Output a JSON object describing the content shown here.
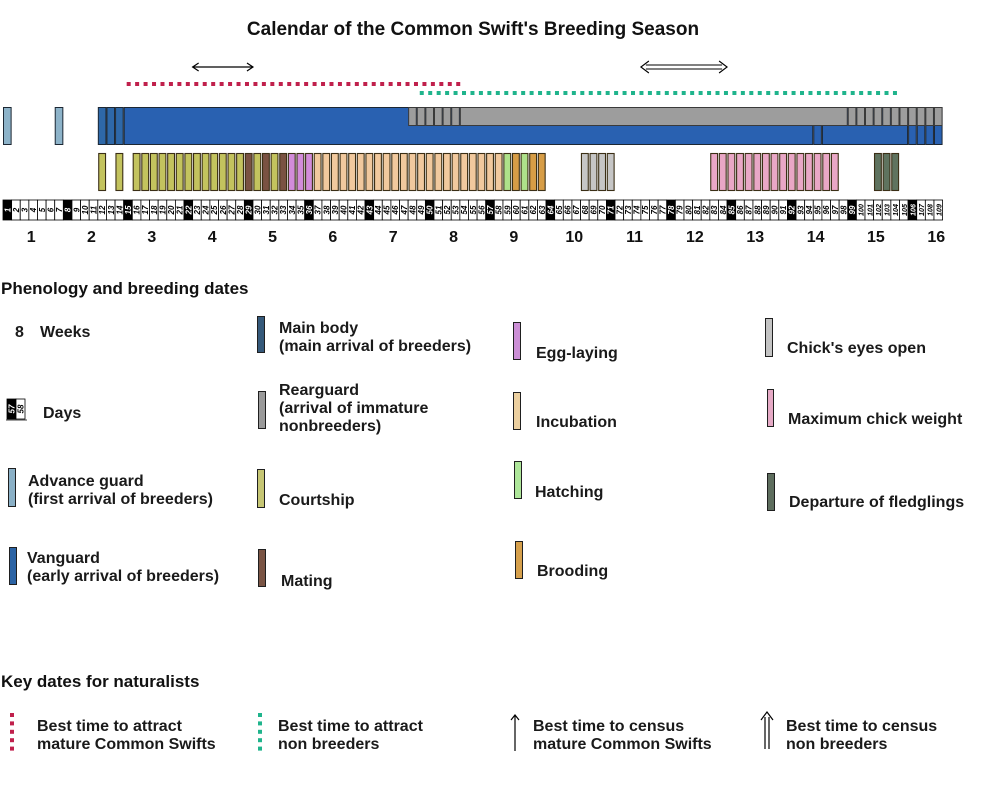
{
  "chart_data": {
    "type": "bar",
    "title": "Calendar of the Common Swift's Breeding Season",
    "xlabel": "",
    "ylabel": "",
    "x_unit": "day",
    "xlim": [
      1,
      109
    ],
    "grid": false,
    "day_ticks": [
      1,
      2,
      3,
      4,
      5,
      6,
      7,
      8,
      9,
      10,
      11,
      12,
      13,
      14,
      15,
      16,
      17,
      18,
      19,
      20,
      21,
      22,
      23,
      24,
      25,
      26,
      27,
      28,
      29,
      30,
      31,
      32,
      33,
      34,
      35,
      36,
      37,
      38,
      39,
      40,
      41,
      42,
      43,
      44,
      45,
      46,
      47,
      48,
      49,
      50,
      51,
      52,
      53,
      54,
      55,
      56,
      57,
      58,
      59,
      60,
      61,
      62,
      63,
      64,
      65,
      66,
      67,
      68,
      69,
      70,
      71,
      72,
      73,
      74,
      75,
      76,
      77,
      78,
      79,
      80,
      81,
      82,
      83,
      84,
      85,
      86,
      87,
      88,
      89,
      90,
      91,
      92,
      93,
      94,
      95,
      96,
      97,
      98,
      99,
      100,
      101,
      102,
      103,
      104,
      105,
      106,
      107,
      108,
      109
    ],
    "highlighted_day_ticks": [
      1,
      8,
      15,
      22,
      29,
      36,
      43,
      50,
      57,
      64,
      71,
      78,
      85,
      92,
      99,
      106
    ],
    "week_ticks": [
      1,
      2,
      3,
      4,
      5,
      6,
      7,
      8,
      9,
      10,
      11,
      12,
      13,
      14,
      15,
      16
    ],
    "arrival": [
      {
        "category": "advance_guard",
        "singles": [
          1,
          7
        ]
      },
      {
        "category": "vanguard",
        "singles": [
          12,
          13,
          14
        ]
      },
      {
        "category": "main_body",
        "spans": [
          [
            15,
            94
          ],
          [
            96,
            105
          ]
        ],
        "singles": [
          95,
          106,
          107,
          108,
          109
        ]
      },
      {
        "category": "rearguard",
        "overlay": true,
        "spans": [
          [
            54,
            98
          ]
        ],
        "singles": [
          48,
          49,
          50,
          51,
          52,
          53,
          99,
          100,
          101,
          102,
          103,
          104,
          105,
          106,
          107,
          108,
          109
        ]
      }
    ],
    "activity": [
      {
        "category": "courtship",
        "days": [
          12,
          14,
          16,
          17,
          18,
          19,
          20,
          21,
          22,
          23,
          24,
          25,
          26,
          27,
          28,
          30,
          32
        ]
      },
      {
        "category": "mating",
        "days": [
          29,
          31,
          33
        ]
      },
      {
        "category": "egg_laying",
        "days": [
          34,
          35,
          36
        ]
      },
      {
        "category": "incubation",
        "days": [
          37,
          38,
          39,
          40,
          41,
          42,
          43,
          44,
          45,
          46,
          47,
          48,
          49,
          50,
          51,
          52,
          53,
          54,
          55,
          56,
          57,
          58
        ]
      },
      {
        "category": "hatching",
        "days": [
          59,
          61
        ]
      },
      {
        "category": "brooding",
        "days": [
          60,
          62,
          63
        ]
      },
      {
        "category": "eyes_open",
        "days": [
          68,
          69,
          70,
          71
        ]
      },
      {
        "category": "max_chick_weight",
        "days": [
          83,
          84,
          85,
          86,
          87,
          88,
          89,
          90,
          91,
          92,
          93,
          94,
          95,
          96,
          97
        ]
      },
      {
        "category": "fledging",
        "days": [
          102,
          103,
          104
        ]
      }
    ],
    "markers": [
      {
        "key": "attract_mature",
        "style": "dotted",
        "start": 15,
        "end": 54
      },
      {
        "key": "attract_nonbreeders",
        "style": "dotted",
        "start": 49,
        "end": 104
      },
      {
        "key": "census_mature",
        "style": "single-arrow",
        "start": 23,
        "end": 29
      },
      {
        "key": "census_nonbreeders",
        "style": "double-arrow",
        "start": 75,
        "end": 84
      }
    ],
    "legend": {
      "phenology_heading": "Phenology and breeding dates",
      "scale": {
        "weeks_sample": "8",
        "weeks_label": "Weeks",
        "days_sample": [
          "57",
          "58"
        ],
        "days_label": "Days"
      },
      "categories": {
        "advance_guard": {
          "label": [
            "Advance guard",
            "(first arrival of breeders)"
          ],
          "color": "#8db3c9",
          "swatch_color": "#8ab0c6"
        },
        "vanguard": {
          "label": [
            "Vanguard",
            "(early arrival of breeders)"
          ],
          "color": "#2e68a8",
          "swatch_color": "#2b63a4"
        },
        "main_body": {
          "label": [
            "Main body",
            "(main arrival of breeders)"
          ],
          "color": "#2961b1",
          "swatch_color": "#35597a"
        },
        "rearguard": {
          "label": [
            "Rearguard",
            "(arrival of immature",
            "nonbreeders)"
          ],
          "color": "#9d9d9d",
          "swatch_color": "#9a9a9a"
        },
        "courtship": {
          "label": [
            "Courtship"
          ],
          "color": "#c3c35e",
          "swatch_color": "#c6c674"
        },
        "mating": {
          "label": [
            "Mating"
          ],
          "color": "#7a5242",
          "swatch_color": "#7a5444"
        },
        "egg_laying": {
          "label": [
            "Egg-laying"
          ],
          "color": "#d28cda",
          "swatch_color": "#cc8fd6"
        },
        "incubation": {
          "label": [
            "Incubation"
          ],
          "color": "#f1c99e",
          "swatch_color": "#ecd0a0"
        },
        "hatching": {
          "label": [
            "Hatching"
          ],
          "color": "#aee18a",
          "swatch_color": "#aee69a"
        },
        "brooding": {
          "label": [
            "Brooding"
          ],
          "color": "#d79d46",
          "swatch_color": "#d6a04c"
        },
        "eyes_open": {
          "label": [
            "Chick's eyes open"
          ],
          "color": "#c6c6c6",
          "swatch_color": "#c4c4c4"
        },
        "max_chick_weight": {
          "label": [
            "Maximum chick weight"
          ],
          "color": "#e9a7c6",
          "swatch_color": "#e6aac6"
        },
        "fledging": {
          "label": [
            "Departure of fledglings"
          ],
          "color": "#5f735f",
          "swatch_color": "#5e6e5e"
        }
      },
      "key_dates_heading": "Key dates for naturalists",
      "markers": {
        "attract_mature": {
          "label": [
            "Best time to attract",
            "mature Common Swifts"
          ],
          "color": "#c0204c"
        },
        "attract_nonbreeders": {
          "label": [
            "Best time to attract",
            "non breeders"
          ],
          "color": "#1fb48c"
        },
        "census_mature": {
          "label": [
            "Best time to census",
            "mature Common Swifts"
          ],
          "color": "#000000"
        },
        "census_nonbreeders": {
          "label": [
            "Best time to census",
            "non breeders"
          ],
          "color": "#000000"
        }
      }
    }
  }
}
